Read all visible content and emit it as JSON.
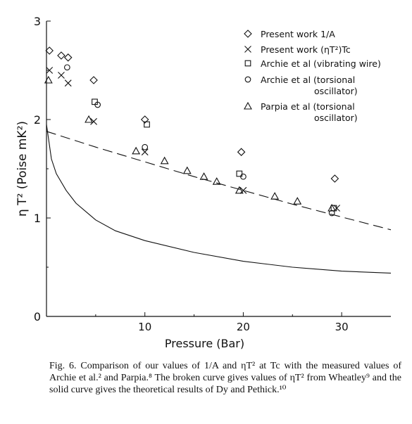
{
  "chart_data": {
    "type": "scatter",
    "xlabel": "Pressure (Bar)",
    "ylabel": "η T² (Poise mK²)",
    "xlim": [
      0,
      35
    ],
    "ylim": [
      0,
      3
    ],
    "xticks": [
      10,
      20,
      30
    ],
    "yticks": [
      0,
      1,
      2,
      3
    ],
    "grid": false,
    "legend_position": "top-right",
    "series": [
      {
        "name": "Present work  1/A",
        "marker": "diamond",
        "x": [
          0.3,
          1.5,
          2.2,
          4.8,
          10.0,
          19.8,
          29.3
        ],
        "y": [
          2.7,
          2.65,
          2.63,
          2.4,
          2.0,
          1.67,
          1.4
        ]
      },
      {
        "name": "Present work  (ηT²)Tc",
        "marker": "x",
        "x": [
          0.3,
          1.5,
          2.2,
          4.8,
          10.0,
          20.0,
          29.5
        ],
        "y": [
          2.5,
          2.45,
          2.37,
          1.98,
          1.67,
          1.28,
          1.1
        ]
      },
      {
        "name": "Archie et al (vibrating wire)",
        "marker": "square",
        "x": [
          4.9,
          10.2,
          19.6,
          29.2
        ],
        "y": [
          2.18,
          1.95,
          1.45,
          1.1
        ]
      },
      {
        "name": "Archie et al (torsional oscillator)",
        "marker": "circle",
        "x": [
          2.1,
          5.2,
          10.0,
          20.0,
          29.0
        ],
        "y": [
          2.53,
          2.15,
          1.72,
          1.42,
          1.05
        ]
      },
      {
        "name": "Parpia et al (torsional oscillator)",
        "marker": "triangle",
        "x": [
          0.2,
          4.3,
          9.1,
          12.0,
          14.3,
          16.0,
          17.3,
          19.6,
          23.2,
          25.5,
          29.0
        ],
        "y": [
          2.4,
          2.0,
          1.68,
          1.58,
          1.48,
          1.42,
          1.37,
          1.28,
          1.22,
          1.17,
          1.1
        ]
      },
      {
        "name": "",
        "kind": "line",
        "style": "dashed",
        "x": [
          0,
          5,
          10,
          15,
          20,
          25,
          30,
          35
        ],
        "y": [
          1.88,
          1.72,
          1.57,
          1.42,
          1.28,
          1.14,
          1.01,
          0.88
        ]
      },
      {
        "name": "",
        "kind": "line",
        "style": "solid",
        "x": [
          0,
          0.5,
          1,
          2,
          3,
          5,
          7,
          10,
          15,
          20,
          25,
          30,
          35
        ],
        "y": [
          1.95,
          1.6,
          1.45,
          1.28,
          1.15,
          0.98,
          0.87,
          0.77,
          0.65,
          0.56,
          0.5,
          0.46,
          0.44
        ]
      }
    ],
    "legend": [
      {
        "marker": "diamond",
        "label": "Present work  1/A"
      },
      {
        "marker": "x",
        "label": "Present work  (ηT²)Tc"
      },
      {
        "marker": "square",
        "label": "Archie et al (vibrating wire)"
      },
      {
        "marker": "circle",
        "label": "Archie et al (torsional\noscillator)"
      },
      {
        "marker": "triangle",
        "label": "Parpia et al (torsional\noscillator)"
      }
    ]
  },
  "caption": "Fig. 6. Comparison of our values of 1/A and ηT² at Tc with the measured values of Archie et al.² and Parpia.⁸ The broken curve gives values of ηT² from Wheatley⁹ and the solid curve gives the theoretical results of Dy and Pethick.¹⁰"
}
